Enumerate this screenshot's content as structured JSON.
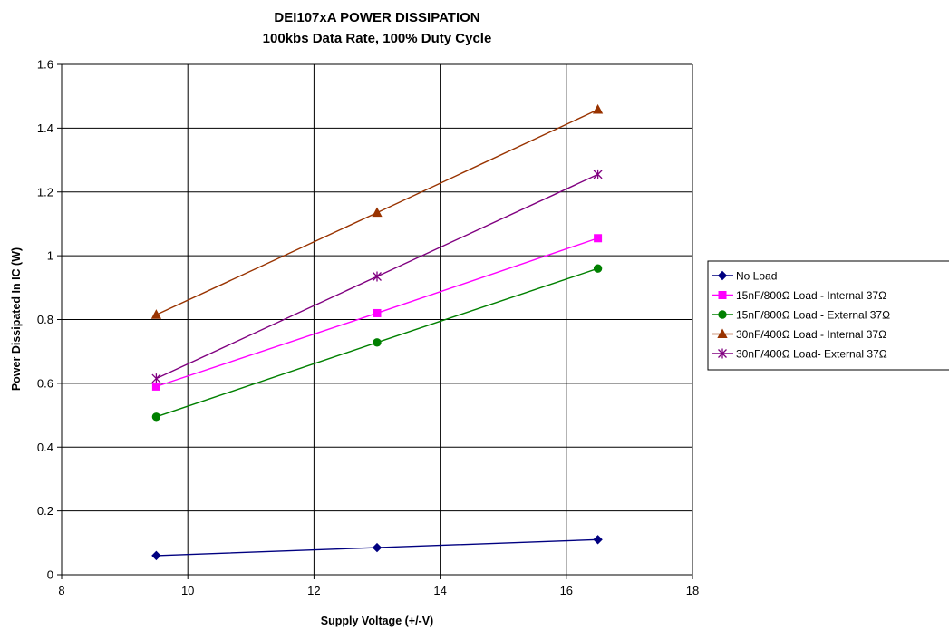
{
  "chart_data": {
    "type": "line",
    "title": "DEI107xA POWER DISSIPATION",
    "subtitle": "100kbs Data Rate, 100% Duty Cycle",
    "xlabel": "Supply Voltage (+/-V)",
    "ylabel": "Power Dissipated In IC (W)",
    "xlim": [
      8,
      18
    ],
    "ylim": [
      0,
      1.6
    ],
    "xticks": [
      "8",
      "10",
      "12",
      "14",
      "16",
      "18"
    ],
    "yticks": [
      "0",
      "0.2",
      "0.4",
      "0.6",
      "0.8",
      "1",
      "1.2",
      "1.4",
      "1.6"
    ],
    "grid": true,
    "legend_position": "right",
    "x": [
      9.5,
      13,
      16.5
    ],
    "series": [
      {
        "name": "No Load",
        "values": [
          0.06,
          0.085,
          0.11
        ],
        "color": "#000080",
        "marker": "diamond"
      },
      {
        "name": "15nF/800Ω Load - Internal 37Ω",
        "values": [
          0.59,
          0.82,
          1.055
        ],
        "color": "#ff00ff",
        "marker": "square"
      },
      {
        "name": "15nF/800Ω Load - External 37Ω",
        "values": [
          0.495,
          0.728,
          0.96
        ],
        "color": "#008000",
        "marker": "circle"
      },
      {
        "name": "30nF/400Ω Load - Internal 37Ω",
        "values": [
          0.815,
          1.135,
          1.458
        ],
        "color": "#993300",
        "marker": "triangle"
      },
      {
        "name": "30nF/400Ω Load- External 37Ω",
        "values": [
          0.615,
          0.935,
          1.255
        ],
        "color": "#800080",
        "marker": "star"
      }
    ]
  }
}
